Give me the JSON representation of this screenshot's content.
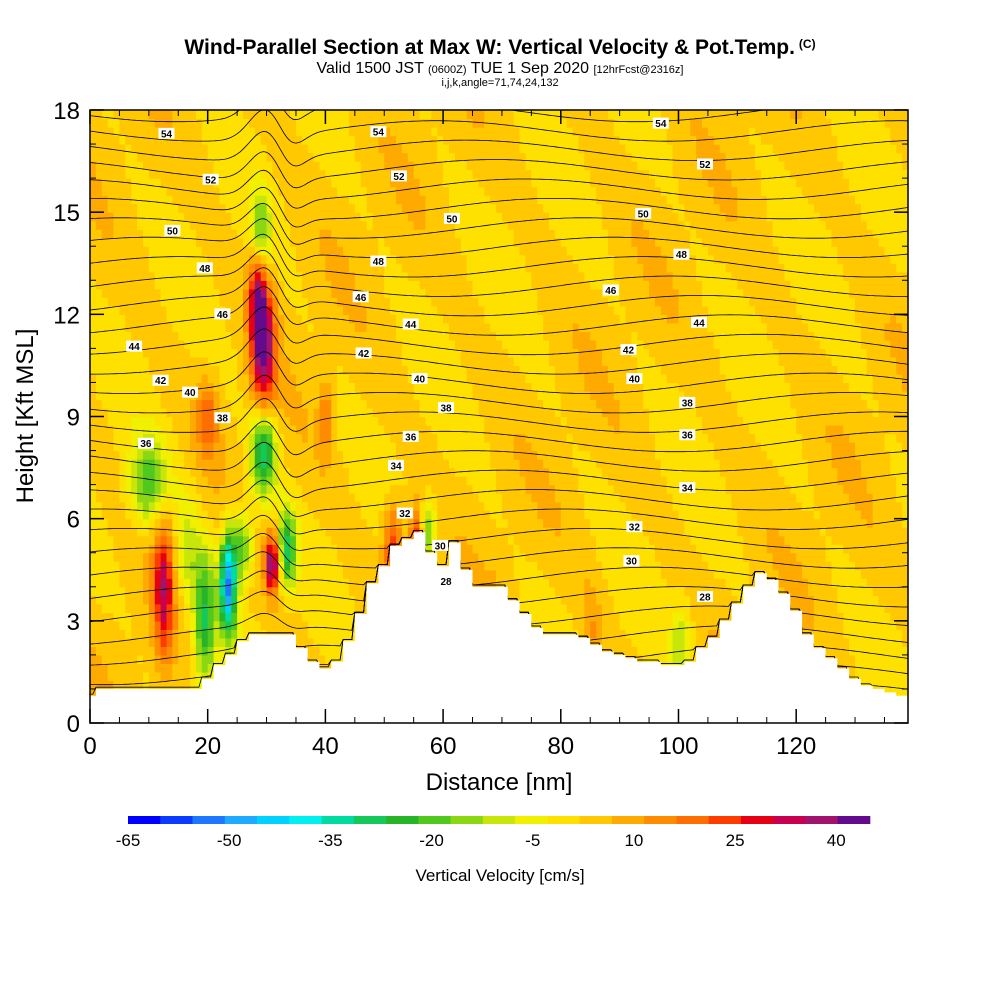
{
  "header": {
    "title": "Wind-Parallel Section at Max W: Vertical Velocity & Pot.Temp.",
    "title_mark": "(C)",
    "valid_a": "Valid 1500 JST",
    "valid_zulu": "(0600Z)",
    "valid_b": "TUE 1 Sep 2020",
    "forecast": "[12hrFcst@2316z]",
    "indices": "i,j,k,angle=71,74,24,132"
  },
  "chart_data": {
    "type": "heatmap",
    "xlabel": "Distance [nm]",
    "ylabel": "Height [Kft MSL]",
    "xlim": [
      0,
      139
    ],
    "ylim": [
      0,
      18
    ],
    "xticks": [
      0,
      20,
      40,
      60,
      80,
      100,
      120
    ],
    "yticks": [
      0,
      3,
      6,
      9,
      12,
      15,
      18
    ],
    "colorbar": {
      "label": "Vertical Velocity [cm/s]",
      "tick_labels": [
        -65,
        -50,
        -35,
        -20,
        -5,
        10,
        25,
        40
      ],
      "bins": [
        -65,
        -60,
        -55,
        -50,
        -45,
        -40,
        -35,
        -30,
        -25,
        -20,
        -15,
        -10,
        -5,
        0,
        5,
        10,
        15,
        20,
        25,
        30,
        35,
        40,
        45
      ],
      "colors": [
        "#0000ff",
        "#0a3cff",
        "#1e78ff",
        "#1eaaff",
        "#00d2ff",
        "#00f0f0",
        "#00dca0",
        "#14c85a",
        "#28b428",
        "#50c81e",
        "#8cd714",
        "#c8e60a",
        "#f0f000",
        "#ffe100",
        "#ffc800",
        "#ffaa00",
        "#ff8c00",
        "#ff6e00",
        "#ff3c00",
        "#e60014",
        "#c80050",
        "#a0146e",
        "#640a8c"
      ]
    },
    "isentrope_labels": [
      {
        "v": 54,
        "x": 13.0,
        "y": 17.3
      },
      {
        "v": 54,
        "x": 49.0,
        "y": 17.35
      },
      {
        "v": 54,
        "x": 97.0,
        "y": 17.6
      },
      {
        "v": 52,
        "x": 20.5,
        "y": 15.95
      },
      {
        "v": 52,
        "x": 52.5,
        "y": 16.05
      },
      {
        "v": 52,
        "x": 104.5,
        "y": 16.4
      },
      {
        "v": 50,
        "x": 14.0,
        "y": 14.45
      },
      {
        "v": 50,
        "x": 61.5,
        "y": 14.8
      },
      {
        "v": 50,
        "x": 94.0,
        "y": 14.95
      },
      {
        "v": 48,
        "x": 19.5,
        "y": 13.35
      },
      {
        "v": 48,
        "x": 49.0,
        "y": 13.55
      },
      {
        "v": 48,
        "x": 100.5,
        "y": 13.75
      },
      {
        "v": 46,
        "x": 22.5,
        "y": 12.0
      },
      {
        "v": 46,
        "x": 46.0,
        "y": 12.5
      },
      {
        "v": 46,
        "x": 88.5,
        "y": 12.7
      },
      {
        "v": 44,
        "x": 7.5,
        "y": 11.05
      },
      {
        "v": 44,
        "x": 54.5,
        "y": 11.7
      },
      {
        "v": 44,
        "x": 103.5,
        "y": 11.75
      },
      {
        "v": 42,
        "x": 12.0,
        "y": 10.05
      },
      {
        "v": 42,
        "x": 46.5,
        "y": 10.85
      },
      {
        "v": 42,
        "x": 91.5,
        "y": 10.95
      },
      {
        "v": 40,
        "x": 17.0,
        "y": 9.7
      },
      {
        "v": 40,
        "x": 56.0,
        "y": 10.1
      },
      {
        "v": 40,
        "x": 92.5,
        "y": 10.1
      },
      {
        "v": 38,
        "x": 22.5,
        "y": 8.95
      },
      {
        "v": 38,
        "x": 60.5,
        "y": 9.25
      },
      {
        "v": 38,
        "x": 101.5,
        "y": 9.4
      },
      {
        "v": 36,
        "x": 9.5,
        "y": 8.2
      },
      {
        "v": 36,
        "x": 54.5,
        "y": 8.4
      },
      {
        "v": 36,
        "x": 101.5,
        "y": 8.45
      },
      {
        "v": 34,
        "x": 52.0,
        "y": 7.55
      },
      {
        "v": 34,
        "x": 101.5,
        "y": 6.9
      },
      {
        "v": 32,
        "x": 53.5,
        "y": 6.15
      },
      {
        "v": 32,
        "x": 92.5,
        "y": 5.75
      },
      {
        "v": 30,
        "x": 59.5,
        "y": 5.2
      },
      {
        "v": 30,
        "x": 92.0,
        "y": 4.75
      },
      {
        "v": 28,
        "x": 60.5,
        "y": 4.15
      },
      {
        "v": 28,
        "x": 104.5,
        "y": 3.7
      }
    ],
    "velocity_features": [
      {
        "x": 29.5,
        "y": 11.0,
        "sx": 1.4,
        "sy": 1.4,
        "w": 38
      },
      {
        "x": 28.5,
        "y": 12.6,
        "sx": 1.1,
        "sy": 1.0,
        "w": 28
      },
      {
        "x": 29.5,
        "y": 8.0,
        "sx": 1.5,
        "sy": 0.9,
        "w": -38
      },
      {
        "x": 29.0,
        "y": 14.3,
        "sx": 1.2,
        "sy": 0.9,
        "w": -22
      },
      {
        "x": 12.5,
        "y": 4.0,
        "sx": 1.2,
        "sy": 1.5,
        "w": 30
      },
      {
        "x": 10.0,
        "y": 7.0,
        "sx": 2.4,
        "sy": 0.9,
        "w": -24
      },
      {
        "x": 16.5,
        "y": 5.0,
        "sx": 1.5,
        "sy": 1.2,
        "w": -14
      },
      {
        "x": 19.5,
        "y": 3.0,
        "sx": 1.3,
        "sy": 1.4,
        "w": -32
      },
      {
        "x": 23.5,
        "y": 4.1,
        "sx": 1.0,
        "sy": 1.1,
        "w": -55
      },
      {
        "x": 26.0,
        "y": 5.2,
        "sx": 1.2,
        "sy": 0.7,
        "w": -24
      },
      {
        "x": 31.0,
        "y": 4.7,
        "sx": 0.9,
        "sy": 0.6,
        "w": 42
      },
      {
        "x": 33.5,
        "y": 5.1,
        "sx": 1.1,
        "sy": 0.8,
        "w": -32
      },
      {
        "x": 51.5,
        "y": 5.2,
        "sx": 1.2,
        "sy": 0.9,
        "w": 24
      },
      {
        "x": 55.5,
        "y": 4.8,
        "sx": 0.9,
        "sy": 1.0,
        "w": 34
      },
      {
        "x": 57.5,
        "y": 5.6,
        "sx": 1.0,
        "sy": 0.7,
        "w": -20
      },
      {
        "x": 20.0,
        "y": 9.0,
        "sx": 1.3,
        "sy": 0.8,
        "w": 16
      },
      {
        "x": 40.0,
        "y": 9.0,
        "sx": 0.8,
        "sy": 0.8,
        "w": 14
      },
      {
        "x": 68.5,
        "y": 2.5,
        "sx": 0.8,
        "sy": 0.8,
        "w": 22
      },
      {
        "x": 73.0,
        "y": 1.7,
        "sx": 0.7,
        "sy": 0.7,
        "w": -16
      },
      {
        "x": 100.5,
        "y": 2.3,
        "sx": 1.3,
        "sy": 0.9,
        "w": -14
      },
      {
        "x": 85.0,
        "y": 2.5,
        "sx": 1.2,
        "sy": 1.0,
        "w": 10
      }
    ],
    "terrain_heights": [
      0.8,
      1.0,
      1.0,
      1.0,
      1.0,
      1.0,
      1.0,
      1.0,
      1.0,
      1.0,
      1.3,
      1.7,
      2.0,
      2.4,
      2.6,
      2.6,
      2.6,
      2.6,
      2.2,
      1.8,
      1.6,
      1.8,
      2.4,
      3.2,
      4.1,
      4.6,
      5.2,
      5.4,
      5.6,
      5.0,
      4.6,
      5.3,
      4.5,
      4.0,
      4.0,
      4.0,
      3.6,
      3.2,
      2.8,
      2.6,
      2.6,
      2.6,
      2.5,
      2.3,
      2.1,
      2.0,
      1.9,
      1.8,
      1.8,
      1.7,
      1.7,
      1.8,
      2.2,
      2.5,
      3.0,
      3.5,
      4.0,
      4.4,
      4.2,
      3.8,
      3.3,
      2.6,
      2.2,
      1.9,
      1.6,
      1.3,
      1.1,
      1.0,
      0.9,
      0.8,
      0.7,
      0.6,
      0.5,
      0.3,
      0.3,
      0.3
    ]
  }
}
